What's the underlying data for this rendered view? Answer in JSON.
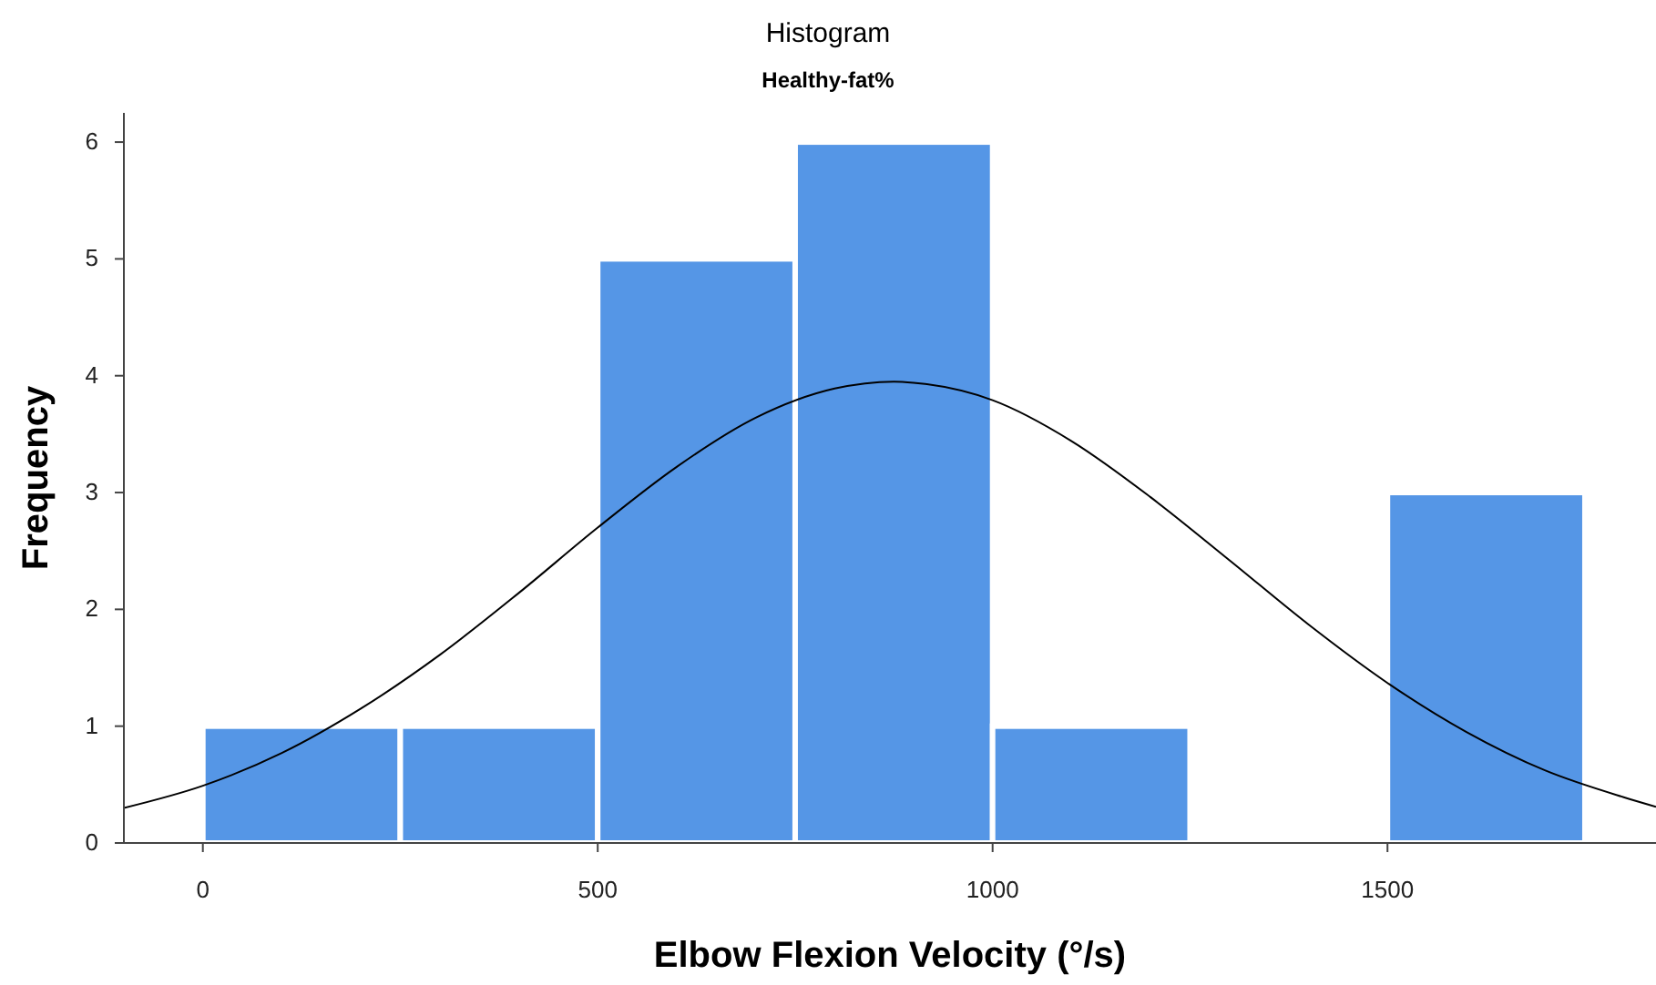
{
  "chart_data": {
    "type": "histogram",
    "title": "Histogram",
    "subtitle": "Healthy-fat%",
    "xlabel": "Elbow Flexion Velocity (°/s)",
    "ylabel": "Frequency",
    "bins": [
      0,
      250,
      500,
      750,
      1000,
      1250,
      1500,
      1750
    ],
    "series": [
      {
        "color": "#5596e6",
        "values": [
          1,
          1,
          5,
          6,
          1,
          0,
          3
        ]
      },
      {
        "type": "line",
        "color": "#000000",
        "x": [
          -100,
          0,
          100,
          200,
          300,
          400,
          500,
          600,
          700,
          800,
          875,
          900,
          1000,
          1100,
          1200,
          1300,
          1400,
          1500,
          1600,
          1700,
          1800,
          1840
        ],
        "values": [
          0.3,
          0.49,
          0.77,
          1.15,
          1.61,
          2.14,
          2.7,
          3.22,
          3.64,
          3.89,
          3.95,
          3.94,
          3.79,
          3.44,
          2.96,
          2.42,
          1.87,
          1.37,
          0.95,
          0.62,
          0.39,
          0.31
        ]
      }
    ],
    "xlim": [
      -100,
      1840
    ],
    "ylim": [
      0,
      6.25
    ],
    "xticks": [
      0,
      500,
      1000,
      1500
    ],
    "yticks": [
      0,
      1,
      2,
      3,
      4,
      5,
      6
    ],
    "grid": false
  }
}
